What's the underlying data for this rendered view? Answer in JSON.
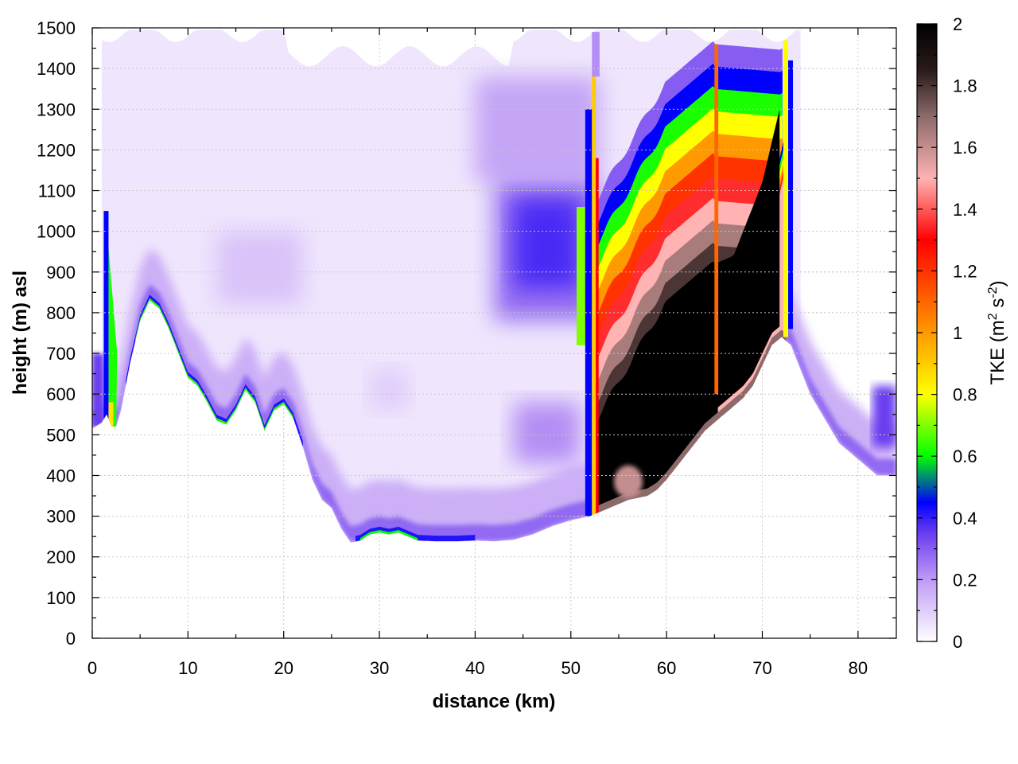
{
  "chart_data": {
    "type": "heatmap",
    "title": "",
    "xlabel": "distance (km)",
    "ylabel": "height (m) asl",
    "xlim": [
      0,
      84
    ],
    "ylim": [
      0,
      1500
    ],
    "x_ticks": [
      "0",
      "10",
      "20",
      "30",
      "40",
      "50",
      "60",
      "70",
      "80"
    ],
    "y_ticks": [
      "0",
      "100",
      "200",
      "300",
      "400",
      "500",
      "600",
      "700",
      "800",
      "900",
      "1000",
      "1100",
      "1200",
      "1300",
      "1400",
      "1500"
    ],
    "grid": true,
    "colorbar": {
      "label_main": "TKE (m",
      "label_sup1": "2",
      "label_mid": " s",
      "label_sup2": "-2",
      "label_end": ")",
      "range": [
        0,
        2
      ],
      "ticks": [
        "0",
        "0.2",
        "0.4",
        "0.6",
        "0.8",
        "1",
        "1.2",
        "1.4",
        "1.6",
        "1.8",
        "2"
      ],
      "colormap": [
        {
          "v": 0.0,
          "c": "#ffffff"
        },
        {
          "v": 0.2,
          "c": "#bf9bf5"
        },
        {
          "v": 0.35,
          "c": "#6a3df0"
        },
        {
          "v": 0.45,
          "c": "#0000ff"
        },
        {
          "v": 0.6,
          "c": "#00ff00"
        },
        {
          "v": 0.8,
          "c": "#ffff00"
        },
        {
          "v": 1.0,
          "c": "#ff9900"
        },
        {
          "v": 1.3,
          "c": "#ff0000"
        },
        {
          "v": 1.5,
          "c": "#ffb3b3"
        },
        {
          "v": 1.7,
          "c": "#8c6a6a"
        },
        {
          "v": 1.85,
          "c": "#2a1a1a"
        },
        {
          "v": 2.0,
          "c": "#000000"
        }
      ]
    },
    "terrain_profile": {
      "distance_km": [
        0,
        1,
        1.5,
        2,
        2.5,
        3,
        4,
        5,
        6,
        7,
        8,
        9,
        10,
        11,
        12,
        13,
        14,
        15,
        16,
        17,
        18,
        19,
        20,
        21,
        22,
        23,
        24,
        25,
        26,
        27,
        28,
        29,
        30,
        31,
        32,
        33,
        34,
        36,
        38,
        40,
        42,
        44,
        46,
        48,
        50,
        51,
        52,
        53,
        54,
        55,
        56,
        57,
        58,
        59,
        60,
        61,
        62,
        63,
        64,
        65,
        66,
        67,
        68,
        69,
        70,
        71,
        72,
        73,
        74,
        75,
        76,
        77,
        78,
        79,
        80,
        81,
        82,
        83,
        84
      ],
      "height_m": [
        515,
        530,
        550,
        520,
        520,
        560,
        680,
        780,
        830,
        810,
        760,
        700,
        640,
        620,
        580,
        535,
        525,
        560,
        610,
        580,
        510,
        560,
        575,
        540,
        470,
        390,
        340,
        320,
        270,
        235,
        240,
        255,
        260,
        255,
        260,
        250,
        240,
        238,
        238,
        240,
        238,
        242,
        255,
        275,
        290,
        295,
        300,
        310,
        320,
        330,
        340,
        345,
        350,
        365,
        390,
        420,
        450,
        480,
        510,
        530,
        550,
        570,
        590,
        620,
        670,
        720,
        740,
        720,
        660,
        600,
        560,
        520,
        480,
        460,
        440,
        420,
        400,
        400,
        400
      ]
    },
    "fields": [
      {
        "name": "upper-boundary-layer",
        "x_range": [
          0,
          84
        ],
        "z_range": [
          300,
          1500
        ],
        "tke": 0.08
      },
      {
        "name": "mid-valley-layer",
        "x_range": [
          44,
          51
        ],
        "z_range": [
          780,
          1150
        ],
        "tke": 0.35
      },
      {
        "name": "west-slope-column",
        "x_range": [
          1,
          2.5
        ],
        "z_range": [
          520,
          1000
        ],
        "tke": 0.6
      },
      {
        "name": "turbulent-core",
        "x_range": [
          52,
          72
        ],
        "z_range": [
          300,
          1350
        ],
        "tke": 2.0
      },
      {
        "name": "upper-bands",
        "x_range": [
          52,
          73
        ],
        "z_range": [
          900,
          1490
        ],
        "tke": 1.1
      },
      {
        "name": "lee-band",
        "x_range": [
          65,
          72
        ],
        "z_range": [
          550,
          820
        ],
        "tke": 1.3
      },
      {
        "name": "east-edge-pocket",
        "x_range": [
          81,
          84
        ],
        "z_range": [
          480,
          600
        ],
        "tke": 0.35
      }
    ]
  }
}
